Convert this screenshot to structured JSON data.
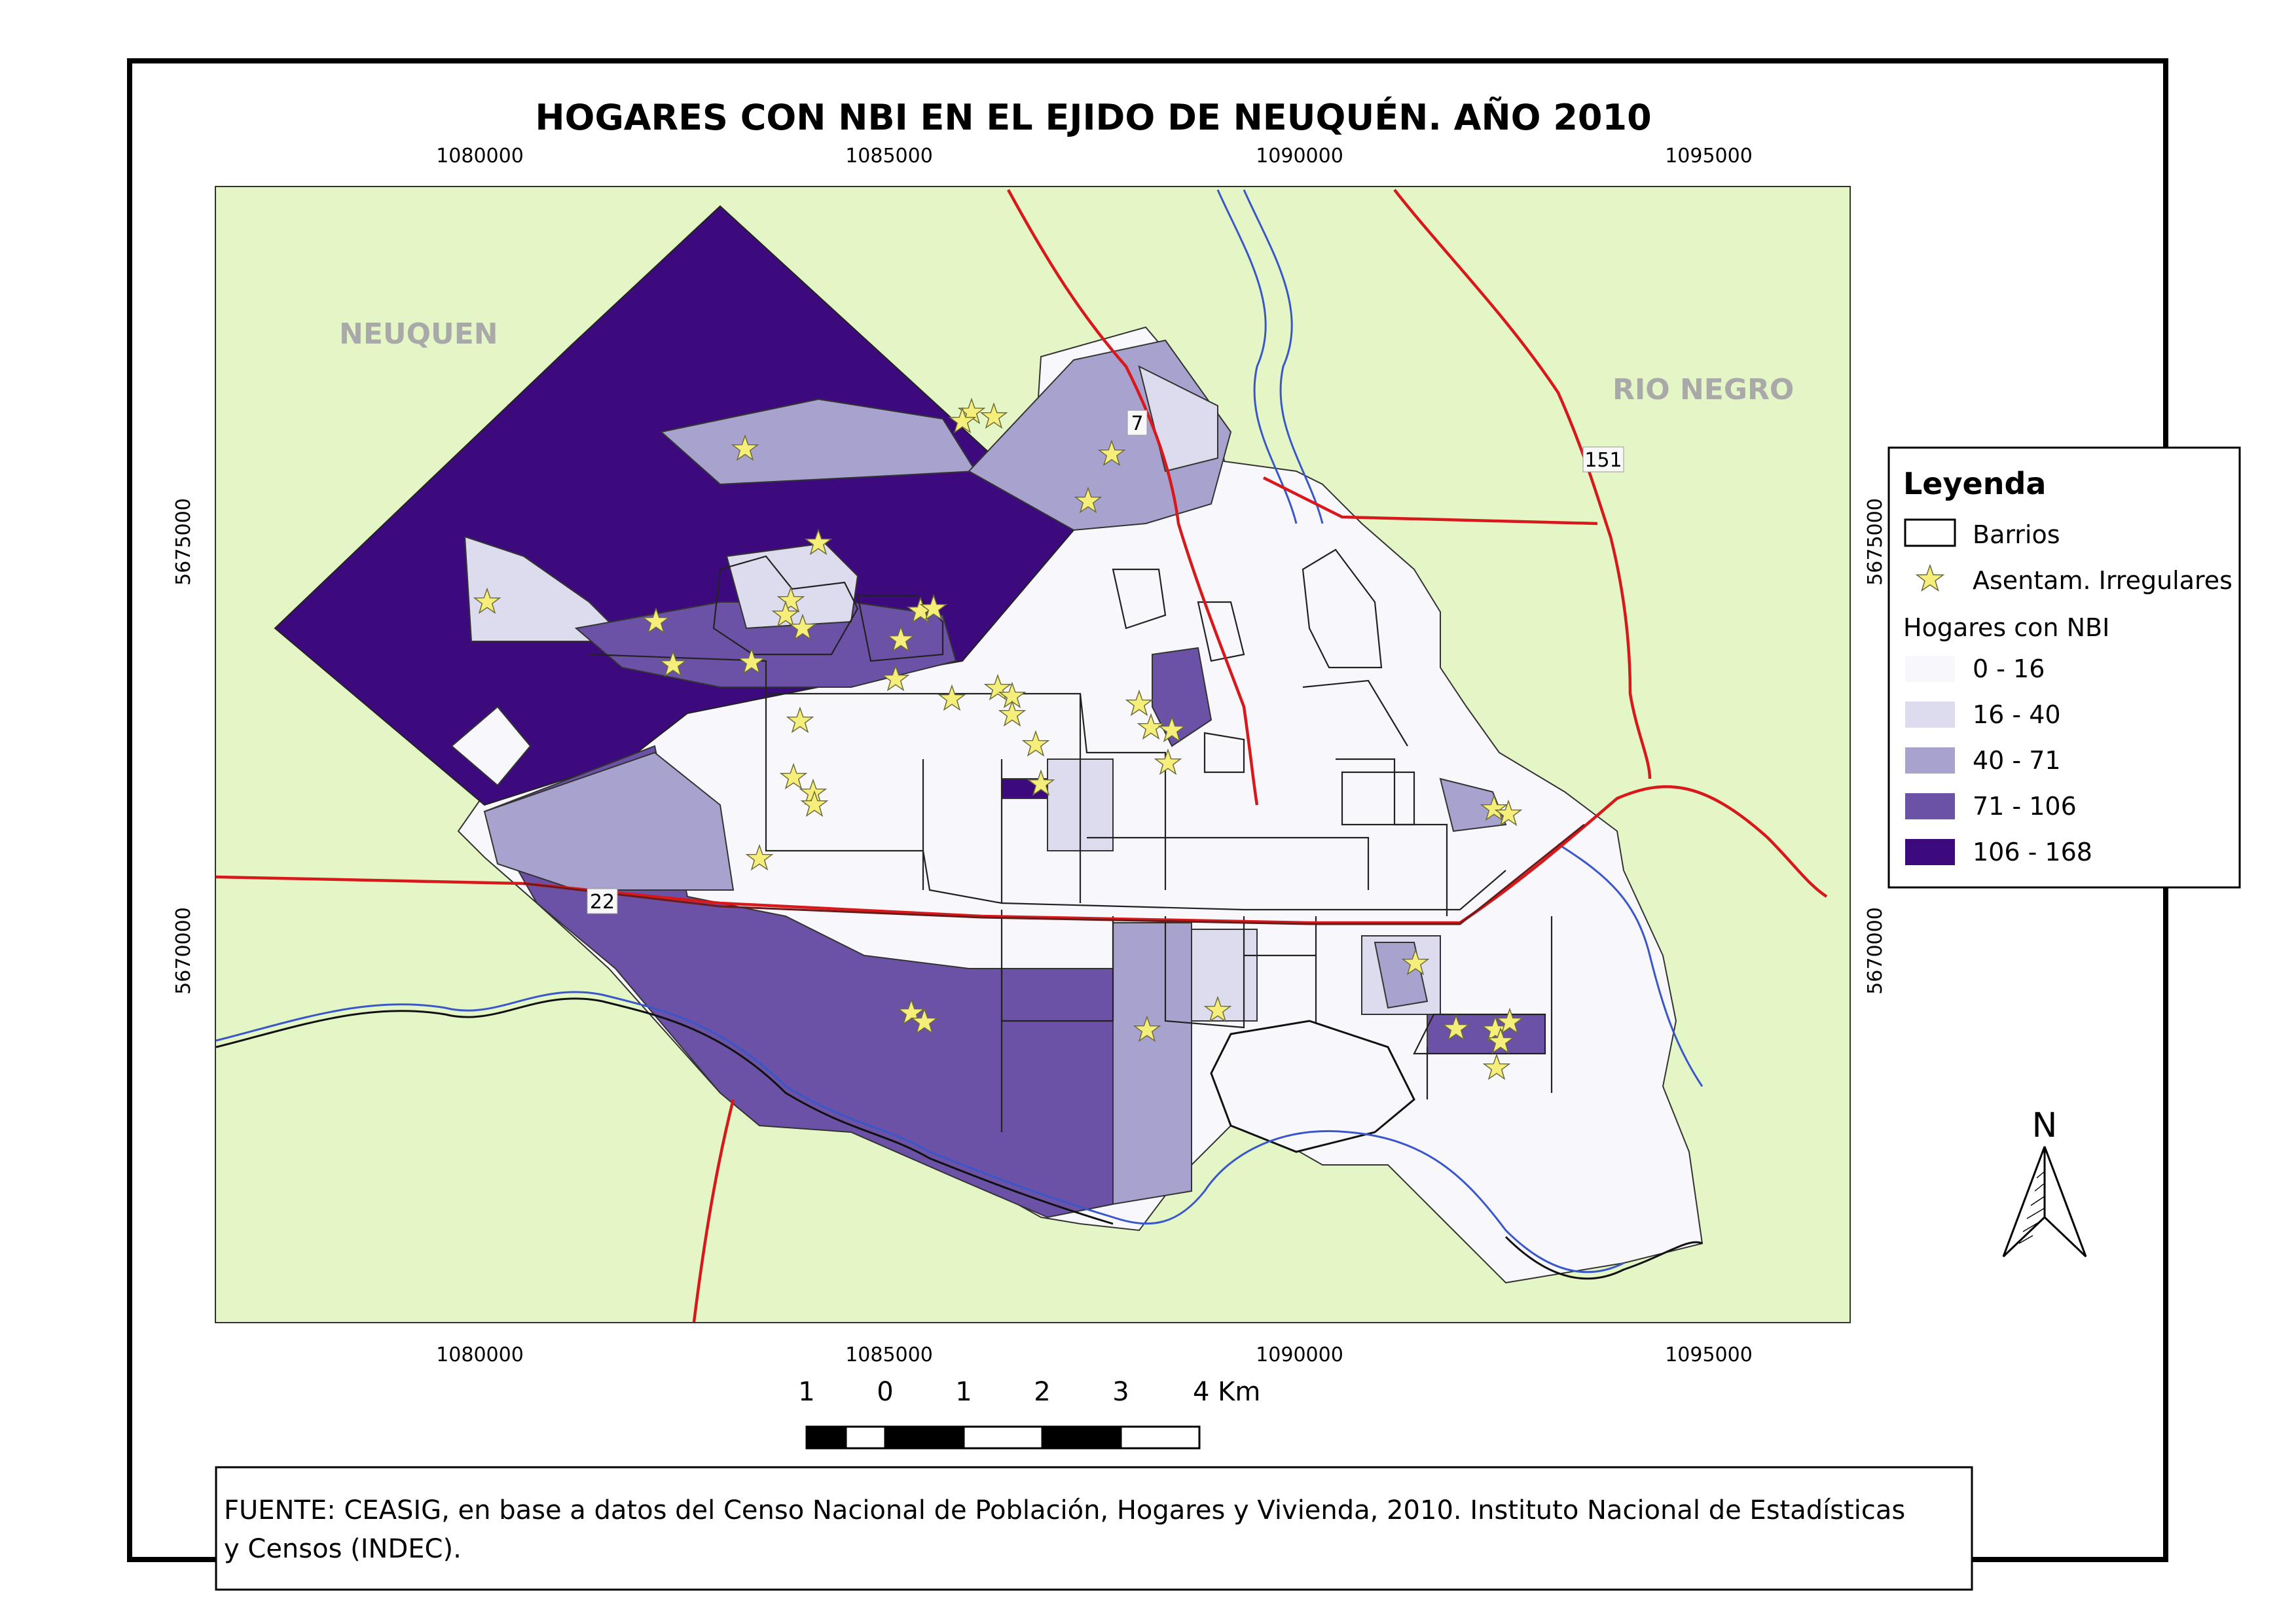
{
  "title": "HOGARES CON NBI EN EL EJIDO DE NEUQUÉN. AÑO 2010",
  "map": {
    "x_ticks": [
      "1080000",
      "1085000",
      "1090000",
      "1095000"
    ],
    "y_ticks": [
      "5675000",
      "5670000"
    ],
    "region_labels": {
      "west": "NEUQUEN",
      "east": "RIO NEGRO"
    },
    "road_labels": {
      "r7": "7",
      "r22": "22",
      "r151": "151"
    },
    "colors": {
      "background": "#e5f6c6",
      "class_0_16": "#f8f8fc",
      "class_16_40": "#dddcee",
      "class_40_71": "#a7a3ce",
      "class_71_106": "#6b52a6",
      "class_106_168": "#3d0a7e",
      "roads": "#d7191c",
      "rivers": "#3a57c9",
      "settlement_star": "#f6ee7a"
    }
  },
  "legend": {
    "title": "Leyenda",
    "barrios": "Barrios",
    "asentamientos": "Asentam. Irregulares",
    "subtitle": "Hogares con NBI",
    "classes": [
      "0 - 16",
      "16 - 40",
      "40 - 71",
      "71 - 106",
      "106 - 168"
    ]
  },
  "scale": {
    "labels": [
      "1",
      "0",
      "1",
      "2",
      "3",
      "4 Km"
    ]
  },
  "north": {
    "label": "N"
  },
  "source": {
    "line1": "FUENTE: CEASIG,  en base a datos del Censo Nacional de Población, Hogares y Vivienda, 2010. Instituto Nacional de Estadísticas",
    "line2": "y Censos (INDEC)."
  }
}
